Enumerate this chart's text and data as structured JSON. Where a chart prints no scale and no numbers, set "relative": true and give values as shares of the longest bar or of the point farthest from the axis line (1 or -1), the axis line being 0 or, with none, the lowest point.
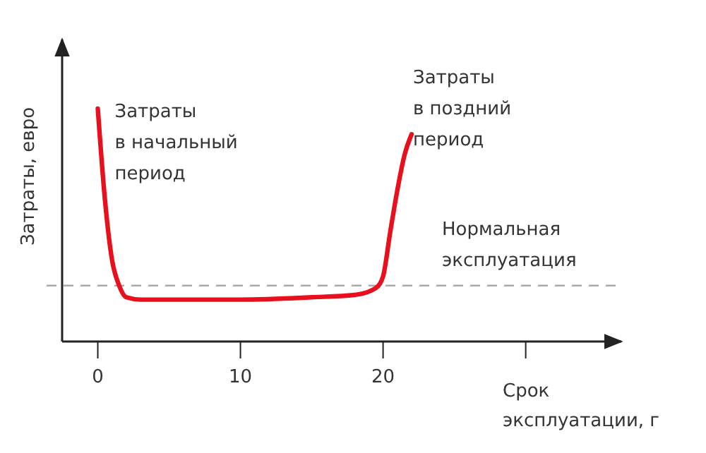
{
  "chart_data": {
    "type": "line",
    "relative": true,
    "xlabel": "Срок\nэксплуатации, г",
    "ylabel": "Затраты, евро",
    "xlim": [
      -2.5,
      36.7
    ],
    "xticks": [
      0,
      10,
      20,
      {
        "value": 30,
        "label": null
      }
    ],
    "series": [
      {
        "color": "#e8101c",
        "x": [
          0,
          0.5,
          1,
          1.5,
          2,
          3,
          5,
          10,
          15,
          18,
          19.5,
          20,
          20.5,
          21,
          21.5,
          22
        ],
        "values": [
          1,
          0.61,
          0.35,
          0.24,
          0.19,
          0.18,
          0.18,
          0.18,
          0.19,
          0.2,
          0.23,
          0.28,
          0.47,
          0.65,
          0.8,
          0.89
        ]
      }
    ],
    "ref_lines": [
      {
        "axis": "y",
        "value": 0.24,
        "label": "Нормальная\nэксплуатация",
        "color": "#aaaaaa",
        "line_style": "dashed"
      }
    ],
    "annotations": [
      {
        "text": "Затраты\nв начальный\nпериод",
        "x": 0,
        "y": 1
      },
      {
        "text": "Затраты\nв поздний\nпериод",
        "x": 22,
        "y": 0.89
      }
    ],
    "grid": false,
    "marker": "none",
    "line_style": "solid"
  }
}
